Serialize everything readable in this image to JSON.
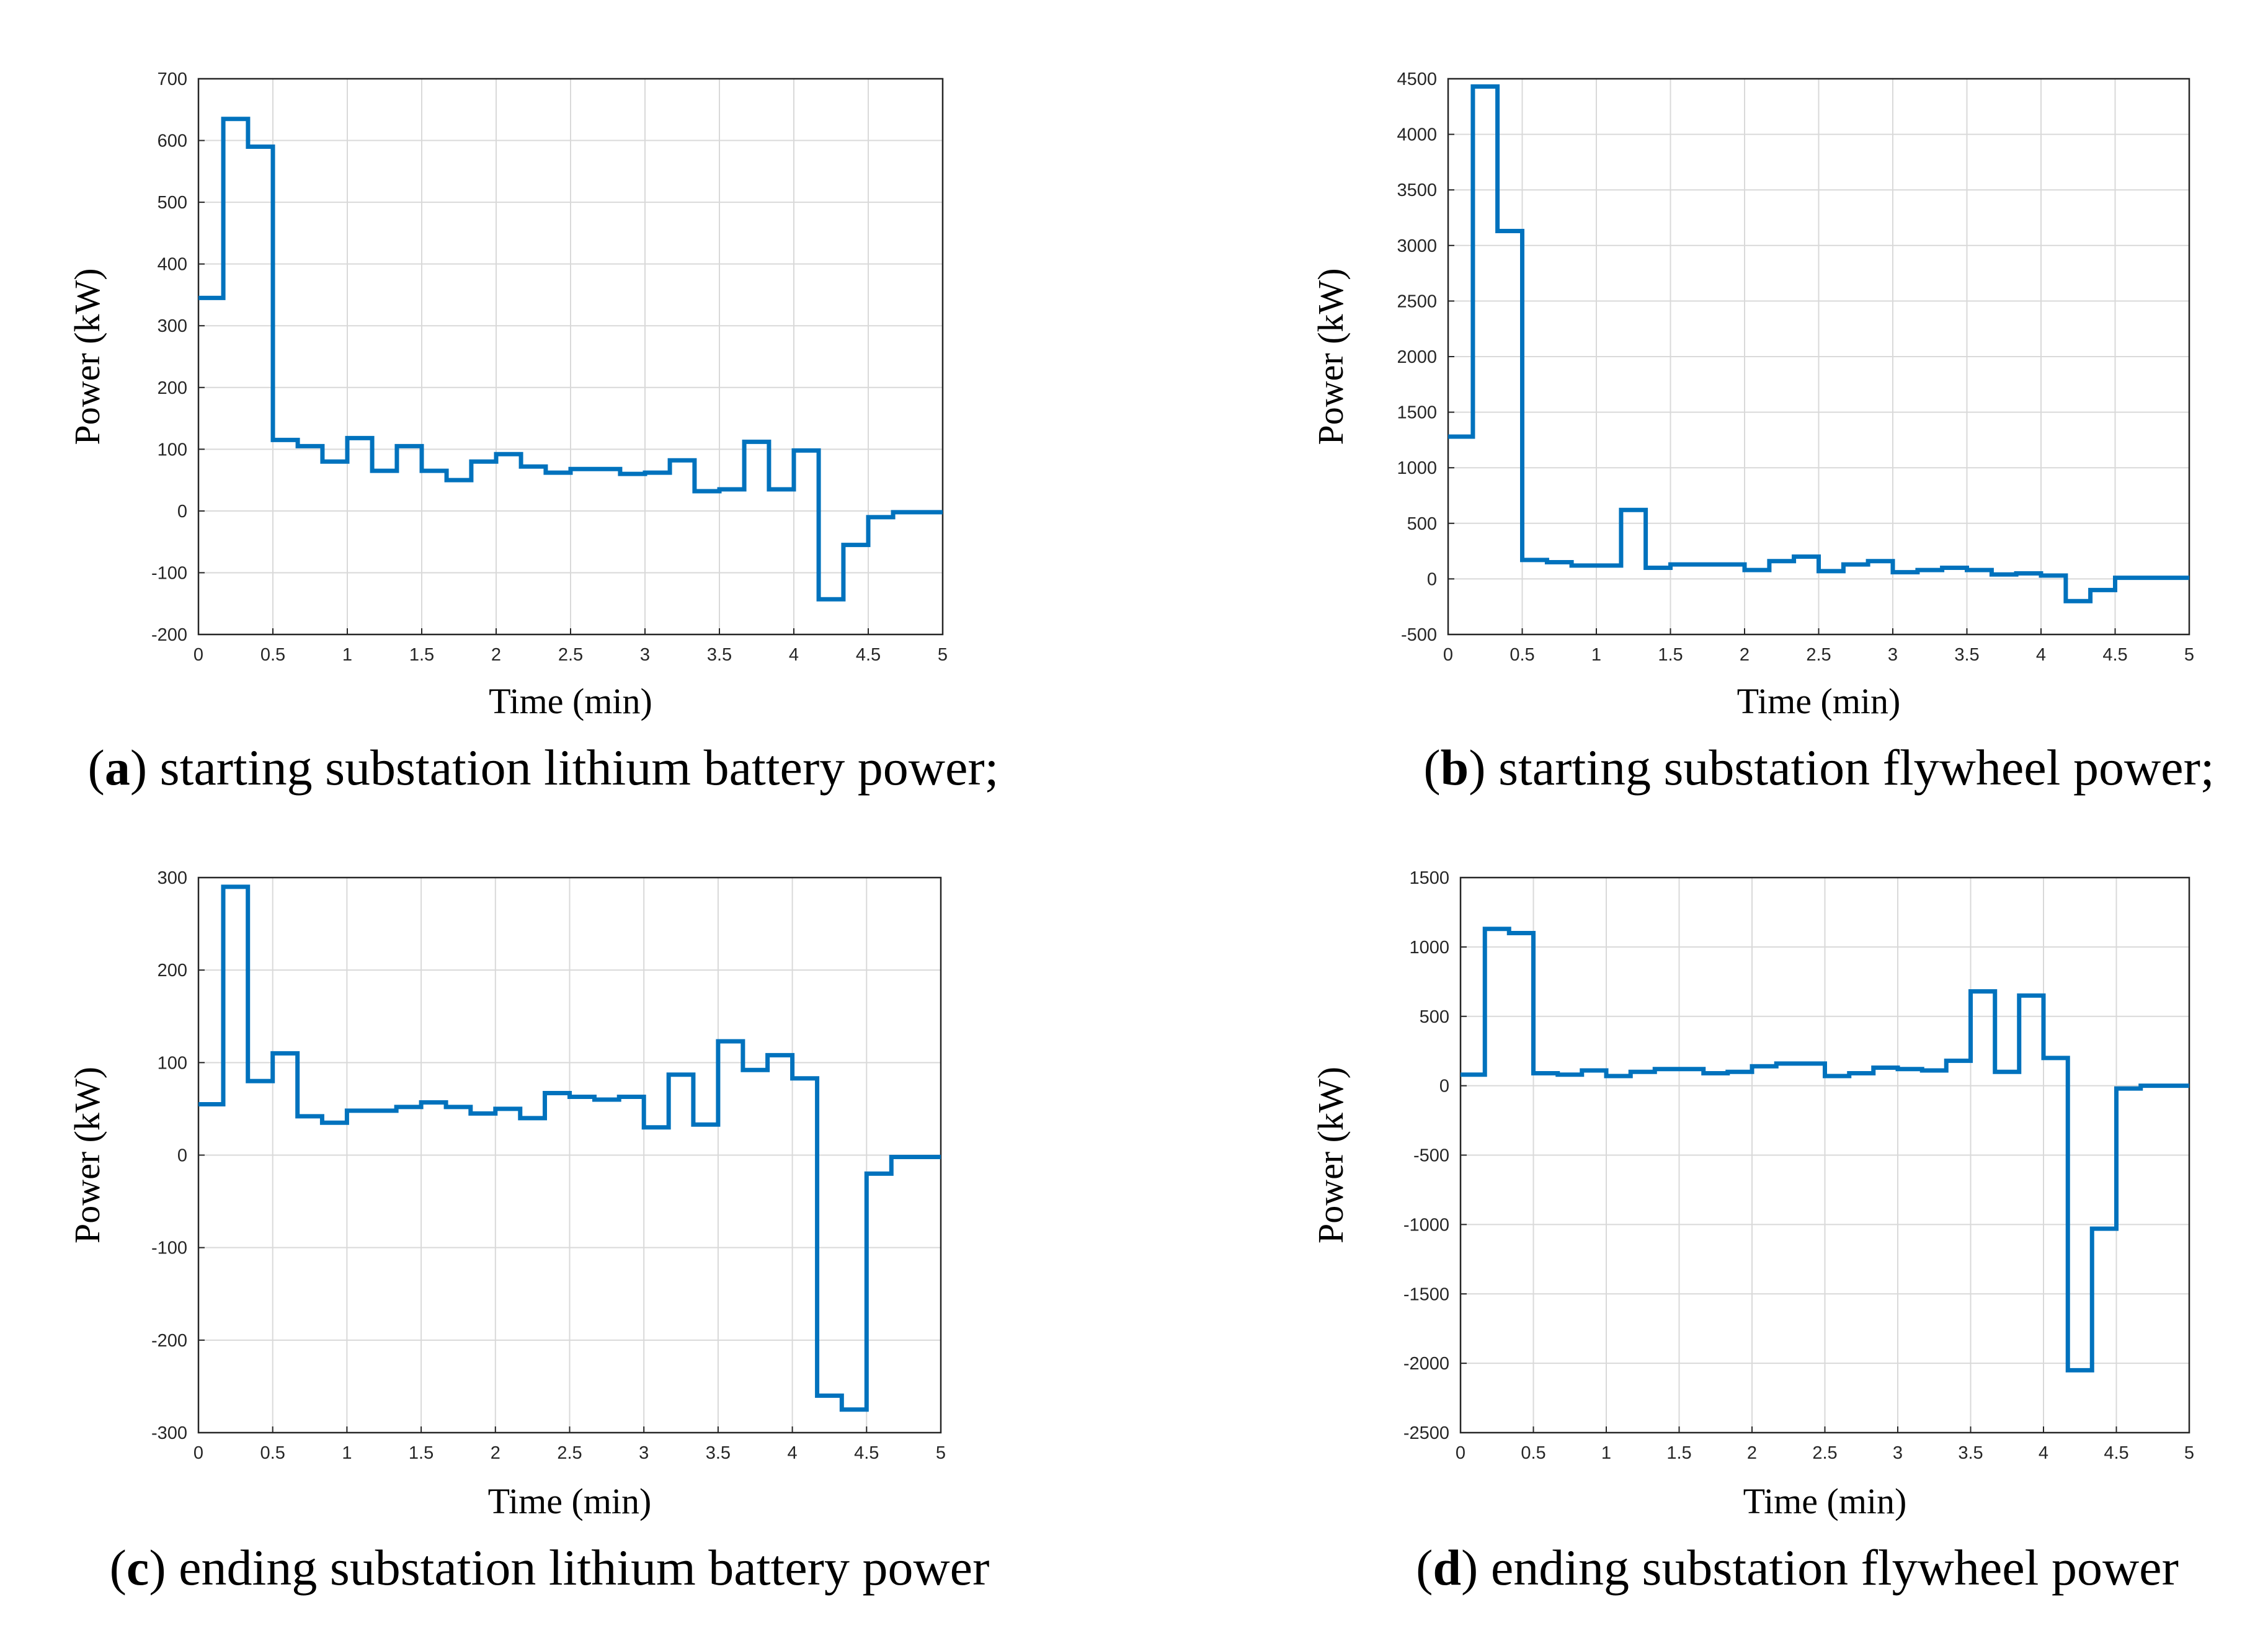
{
  "series_color": "#0072BD",
  "chart_data": [
    {
      "type": "line",
      "step": true,
      "title": "",
      "xlabel": "Time (min)",
      "ylabel": "Power (kW)",
      "xlim": [
        0,
        5
      ],
      "ylim": [
        -200,
        700
      ],
      "xticks": [
        0,
        0.5,
        1,
        1.5,
        2,
        2.5,
        3,
        3.5,
        4,
        4.5,
        5
      ],
      "xtick_labels": [
        "0",
        "0.5",
        "1",
        "1.5",
        "2",
        "2.5",
        "3",
        "3.5",
        "4",
        "4.5",
        "5"
      ],
      "yticks": [
        -200,
        -100,
        0,
        100,
        200,
        300,
        400,
        500,
        600,
        700
      ],
      "ytick_labels": [
        "-200",
        "-100",
        "0",
        "100",
        "200",
        "300",
        "400",
        "500",
        "600",
        "700"
      ],
      "grid": true,
      "caption_letter": "a",
      "caption_text": "starting substation lithium battery power;",
      "x": [
        0,
        0.167,
        0.333,
        0.5,
        0.667,
        0.833,
        1,
        1.167,
        1.333,
        1.5,
        1.667,
        1.833,
        2,
        2.167,
        2.333,
        2.5,
        2.667,
        2.833,
        3,
        3.167,
        3.333,
        3.5,
        3.667,
        3.833,
        4,
        4.167,
        4.333,
        4.5,
        4.667,
        5
      ],
      "y": [
        345,
        635,
        590,
        115,
        105,
        80,
        118,
        65,
        105,
        65,
        50,
        80,
        92,
        72,
        62,
        68,
        68,
        60,
        62,
        82,
        32,
        35,
        112,
        35,
        98,
        -143,
        -55,
        -10,
        -2,
        -2
      ]
    },
    {
      "type": "line",
      "step": true,
      "title": "",
      "xlabel": "Time (min)",
      "ylabel": "Power (kW)",
      "xlim": [
        0,
        5
      ],
      "ylim": [
        -500,
        4500
      ],
      "xticks": [
        0,
        0.5,
        1,
        1.5,
        2,
        2.5,
        3,
        3.5,
        4,
        4.5,
        5
      ],
      "xtick_labels": [
        "0",
        "0.5",
        "1",
        "1.5",
        "2",
        "2.5",
        "3",
        "3.5",
        "4",
        "4.5",
        "5"
      ],
      "yticks": [
        -500,
        0,
        500,
        1000,
        1500,
        2000,
        2500,
        3000,
        3500,
        4000,
        4500
      ],
      "ytick_labels": [
        "-500",
        "0",
        "500",
        "1000",
        "1500",
        "2000",
        "2500",
        "3000",
        "3500",
        "4000",
        "4500"
      ],
      "grid": true,
      "caption_letter": "b",
      "caption_text": "starting substation flywheel power;",
      "x": [
        0,
        0.167,
        0.333,
        0.5,
        0.667,
        0.833,
        1,
        1.167,
        1.333,
        1.5,
        1.667,
        1.833,
        2,
        2.167,
        2.333,
        2.5,
        2.667,
        2.833,
        3,
        3.167,
        3.333,
        3.5,
        3.667,
        3.833,
        4,
        4.167,
        4.333,
        4.5,
        4.667,
        5
      ],
      "y": [
        1280,
        4430,
        3130,
        170,
        150,
        120,
        120,
        620,
        100,
        130,
        130,
        130,
        80,
        160,
        200,
        70,
        130,
        160,
        60,
        80,
        100,
        80,
        40,
        50,
        30,
        -200,
        -100,
        10,
        10,
        10
      ]
    },
    {
      "type": "line",
      "step": true,
      "title": "",
      "xlabel": "Time (min)",
      "ylabel": "Power (kW)",
      "xlim": [
        0,
        5
      ],
      "ylim": [
        -300,
        300
      ],
      "xticks": [
        0,
        0.5,
        1,
        1.5,
        2,
        2.5,
        3,
        3.5,
        4,
        4.5,
        5
      ],
      "xtick_labels": [
        "0",
        "0.5",
        "1",
        "1.5",
        "2",
        "2.5",
        "3",
        "3.5",
        "4",
        "4.5",
        "5"
      ],
      "yticks": [
        -300,
        -200,
        -100,
        0,
        100,
        200,
        300
      ],
      "ytick_labels": [
        "-300",
        "-200",
        "-100",
        "0",
        "100",
        "200",
        "300"
      ],
      "grid": true,
      "caption_letter": "c",
      "caption_text": "ending substation lithium battery power",
      "x": [
        0,
        0.167,
        0.333,
        0.5,
        0.667,
        0.833,
        1,
        1.167,
        1.333,
        1.5,
        1.667,
        1.833,
        2,
        2.167,
        2.333,
        2.5,
        2.667,
        2.833,
        3,
        3.167,
        3.333,
        3.5,
        3.667,
        3.833,
        4,
        4.167,
        4.333,
        4.5,
        4.667,
        5
      ],
      "y": [
        55,
        290,
        80,
        110,
        42,
        35,
        48,
        48,
        52,
        57,
        52,
        45,
        50,
        40,
        67,
        63,
        60,
        63,
        30,
        87,
        33,
        123,
        92,
        108,
        83,
        -260,
        -275,
        -20,
        -2,
        -2
      ]
    },
    {
      "type": "line",
      "step": true,
      "title": "",
      "xlabel": "Time (min)",
      "ylabel": "Power (kW)",
      "xlim": [
        0,
        5
      ],
      "ylim": [
        -2500,
        1500
      ],
      "xticks": [
        0,
        0.5,
        1,
        1.5,
        2,
        2.5,
        3,
        3.5,
        4,
        4.5,
        5
      ],
      "xtick_labels": [
        "0",
        "0.5",
        "1",
        "1.5",
        "2",
        "2.5",
        "3",
        "3.5",
        "4",
        "4.5",
        "5"
      ],
      "yticks": [
        -2500,
        -2000,
        -1500,
        -1000,
        -500,
        0,
        500,
        1000,
        1500
      ],
      "ytick_labels": [
        "-2500",
        "-2000",
        "-1500",
        "-1000",
        "-500",
        "0",
        "500",
        "1000",
        "1500"
      ],
      "grid": true,
      "caption_letter": "d",
      "caption_text": "ending substation flywheel power",
      "x": [
        0,
        0.167,
        0.333,
        0.5,
        0.667,
        0.833,
        1,
        1.167,
        1.333,
        1.5,
        1.667,
        1.833,
        2,
        2.167,
        2.333,
        2.5,
        2.667,
        2.833,
        3,
        3.167,
        3.333,
        3.5,
        3.667,
        3.833,
        4,
        4.167,
        4.333,
        4.5,
        4.667,
        5
      ],
      "y": [
        80,
        1130,
        1100,
        90,
        80,
        110,
        70,
        100,
        120,
        120,
        90,
        100,
        140,
        160,
        160,
        70,
        90,
        130,
        120,
        110,
        180,
        680,
        100,
        650,
        200,
        -2050,
        -1030,
        -20,
        0,
        0
      ]
    }
  ]
}
